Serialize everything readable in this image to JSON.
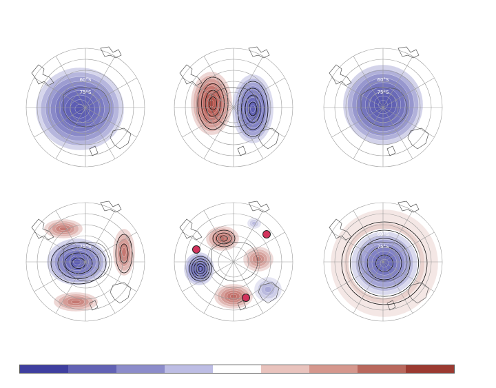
{
  "panels": [
    {
      "id": "p1",
      "labels": [
        "60°S",
        "75°S"
      ]
    },
    {
      "id": "p2",
      "labels": []
    },
    {
      "id": "p3",
      "labels": [
        "60°S",
        "75°S"
      ]
    },
    {
      "id": "p4",
      "labels": [
        "60°S",
        "75°S"
      ]
    },
    {
      "id": "p5",
      "labels": []
    },
    {
      "id": "p6",
      "labels": [
        "60°S",
        "75°S"
      ]
    }
  ],
  "colorbar": {
    "colors": [
      "#3f3f9f",
      "#6262b4",
      "#8c8cca",
      "#bdbde4",
      "#ffffff",
      "#e9c3bd",
      "#d5978d",
      "#b9685d",
      "#9b3a31"
    ]
  },
  "palette": {
    "blue": "#4646a8",
    "red": "#a8392c",
    "marker": "#d2335c"
  }
}
